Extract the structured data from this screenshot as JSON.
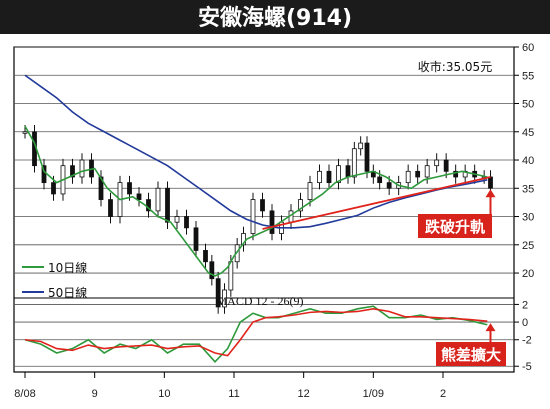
{
  "title": "安徽海螺(914)",
  "close_label": "收市:35.05元",
  "colors": {
    "title_bg": "#1b1b1b",
    "title_fg": "#ffffff",
    "ma10": "#2e9a3c",
    "ma50": "#223a9a",
    "trend": "#e0241c",
    "macd_line": "#2e9a3c",
    "signal_line": "#e0241c",
    "anno_bg": "#d8231c",
    "candle": "#111111"
  },
  "chart_data": [
    {
      "type": "line",
      "title": "",
      "x_labels": [
        "8/08",
        "9",
        "10",
        "11",
        "12",
        "1/09",
        "2"
      ],
      "x_label_positions": [
        0,
        22,
        44,
        66,
        88,
        110,
        132
      ],
      "x_range": [
        0,
        150
      ],
      "y_ticks": [
        20,
        25,
        30,
        35,
        40,
        45,
        50,
        55,
        60
      ],
      "ylim": [
        17,
        60
      ],
      "grid": "horizontal",
      "legend": "bottom-left",
      "series": [
        {
          "name": "10日線",
          "x": [
            0,
            3,
            6,
            10,
            14,
            18,
            22,
            26,
            30,
            34,
            38,
            42,
            46,
            50,
            54,
            58,
            60,
            62,
            64,
            66,
            70,
            74,
            78,
            82,
            86,
            90,
            94,
            98,
            102,
            106,
            110,
            114,
            118,
            122,
            126,
            130,
            134,
            138,
            142,
            146
          ],
          "values": [
            46,
            43,
            38,
            36,
            37,
            38,
            38.5,
            35,
            33,
            33.5,
            32,
            30,
            29,
            26,
            23,
            20,
            19.5,
            20,
            21,
            23,
            26,
            27,
            28,
            29.5,
            31,
            32.5,
            34,
            36,
            37,
            37.5,
            38,
            37,
            35.5,
            35,
            36.5,
            37,
            37.5,
            38,
            37.5,
            37
          ]
        },
        {
          "name": "50日線",
          "x": [
            0,
            5,
            10,
            15,
            20,
            25,
            30,
            35,
            40,
            45,
            50,
            55,
            60,
            65,
            70,
            75,
            80,
            85,
            90,
            95,
            100,
            105,
            110,
            115,
            120,
            125,
            130,
            135,
            140,
            146
          ],
          "values": [
            55,
            53,
            51,
            48.5,
            46.5,
            45,
            43.5,
            42,
            40.5,
            39,
            37,
            35,
            33,
            31,
            29.5,
            28.5,
            28,
            28,
            28.2,
            28.8,
            29.5,
            30.2,
            31.5,
            32.5,
            33.3,
            34,
            34.7,
            35.3,
            35.8,
            36.5
          ]
        }
      ],
      "trendline": {
        "x": [
          75,
          147
        ],
        "values": [
          27.8,
          37
        ]
      },
      "ohlc": {
        "x": [
          0,
          3,
          6,
          9,
          12,
          15,
          18,
          21,
          24,
          27,
          30,
          33,
          36,
          39,
          42,
          45,
          48,
          51,
          54,
          57,
          59,
          61,
          63,
          65,
          67,
          69,
          72,
          75,
          78,
          81,
          84,
          87,
          90,
          93,
          96,
          99,
          102,
          104,
          106,
          108,
          110,
          112,
          115,
          118,
          121,
          124,
          127,
          130,
          133,
          136,
          139,
          142,
          145,
          147
        ],
        "values": [
          45,
          39,
          36,
          34,
          39,
          37,
          40,
          37,
          33,
          30,
          36,
          34,
          33,
          31,
          35,
          29,
          30,
          28,
          24,
          22,
          19,
          14,
          17,
          22,
          25,
          27,
          33,
          31,
          27,
          29,
          31,
          33,
          36,
          38,
          36,
          39,
          37,
          42,
          43,
          38,
          37,
          36,
          35,
          36,
          38,
          37,
          39,
          40,
          38,
          37,
          38,
          37,
          37,
          35
        ]
      },
      "annotation": "跌破升軌",
      "annotation_value": 35
    },
    {
      "type": "line",
      "title": "MACD 12 - 26(9)",
      "y_ticks": [
        -5,
        -2,
        0,
        2
      ],
      "ylim": [
        -5.2,
        2.5
      ],
      "series": [
        {
          "name": "",
          "x": [
            0,
            5,
            10,
            15,
            20,
            25,
            30,
            35,
            40,
            45,
            50,
            55,
            60,
            64,
            68,
            72,
            76,
            80,
            85,
            90,
            95,
            100,
            105,
            110,
            115,
            120,
            125,
            130,
            135,
            140,
            146
          ],
          "values": [
            -2,
            -2.5,
            -3.5,
            -3,
            -2,
            -3.5,
            -2.5,
            -3,
            -2,
            -3.5,
            -2.5,
            -2.5,
            -4.5,
            -3,
            0,
            1,
            0.5,
            0.5,
            1,
            1.5,
            1,
            1,
            1.5,
            1.8,
            0.5,
            0.5,
            0.8,
            0.3,
            0.5,
            0.2,
            -0.3
          ]
        },
        {
          "name": "",
          "x": [
            0,
            5,
            10,
            15,
            20,
            25,
            30,
            35,
            40,
            45,
            50,
            55,
            60,
            64,
            68,
            72,
            76,
            80,
            85,
            90,
            95,
            100,
            105,
            110,
            115,
            120,
            125,
            130,
            135,
            140,
            146
          ],
          "values": [
            -2,
            -2.2,
            -3,
            -3.2,
            -2.6,
            -3,
            -2.8,
            -2.7,
            -2.6,
            -3,
            -2.8,
            -2.7,
            -3.5,
            -3.8,
            -2,
            0,
            0.5,
            0.6,
            0.8,
            1.1,
            1.2,
            1.1,
            1.2,
            1.5,
            1.2,
            0.6,
            0.6,
            0.5,
            0.4,
            0.3,
            0.1
          ]
        }
      ],
      "annotation": "熊差擴大",
      "annotation_value": 0
    }
  ]
}
